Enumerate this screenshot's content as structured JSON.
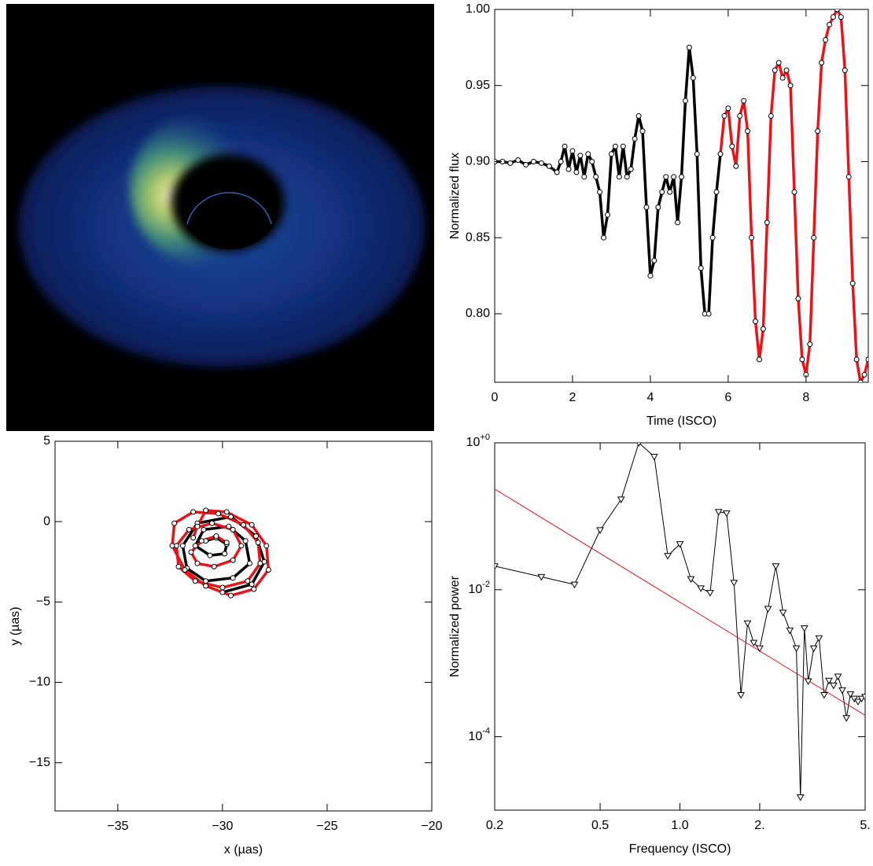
{
  "chart_data": [
    {
      "type": "image"
    },
    {
      "type": "line",
      "xlabel": "Time (ISCO)",
      "ylabel": "Normalized flux",
      "xlim": [
        0,
        9.6
      ],
      "ylim": [
        0.755,
        1.0
      ],
      "xticks": [
        0,
        2,
        4,
        6,
        8
      ],
      "yticks": [
        {
          "value": 0.8,
          "label": "0.80"
        },
        0.85,
        {
          "value": 0.9,
          "label": "0.90"
        },
        0.95,
        {
          "value": 1,
          "label": "1.00"
        }
      ],
      "series": [
        {
          "color": "#000000",
          "marker": "circle",
          "x": [
            0,
            0.2,
            0.4,
            0.6,
            0.8,
            1.0,
            1.2,
            1.4,
            1.6,
            1.7,
            1.8,
            1.9,
            2.0,
            2.1,
            2.2,
            2.3,
            2.4,
            2.5,
            2.6,
            2.7,
            2.8,
            2.9,
            3.0,
            3.1,
            3.2,
            3.3,
            3.4,
            3.5,
            3.6,
            3.7,
            3.8,
            3.9,
            4.0,
            4.1,
            4.2,
            4.3,
            4.4,
            4.5,
            4.6,
            4.7,
            4.8,
            4.9,
            5.0,
            5.1,
            5.2,
            5.3,
            5.4,
            5.5,
            5.6,
            5.7,
            5.8
          ],
          "values": [
            0.9,
            0.9,
            0.899,
            0.901,
            0.898,
            0.9,
            0.899,
            0.897,
            0.893,
            0.9,
            0.91,
            0.895,
            0.907,
            0.893,
            0.904,
            0.89,
            0.905,
            0.9,
            0.89,
            0.88,
            0.85,
            0.865,
            0.905,
            0.91,
            0.89,
            0.91,
            0.89,
            0.895,
            0.915,
            0.93,
            0.92,
            0.87,
            0.825,
            0.835,
            0.87,
            0.88,
            0.89,
            0.88,
            0.89,
            0.86,
            0.89,
            0.94,
            0.975,
            0.955,
            0.905,
            0.83,
            0.8,
            0.8,
            0.85,
            0.88,
            0.905
          ]
        },
        {
          "color": "#e8141a",
          "marker": "circle",
          "x": [
            5.8,
            5.9,
            6.0,
            6.1,
            6.2,
            6.3,
            6.4,
            6.5,
            6.6,
            6.7,
            6.8,
            6.9,
            7.0,
            7.1,
            7.2,
            7.3,
            7.4,
            7.5,
            7.6,
            7.7,
            7.8,
            7.9,
            8.0,
            8.1,
            8.2,
            8.3,
            8.4,
            8.5,
            8.6,
            8.7,
            8.8,
            8.9,
            9.0,
            9.1,
            9.2,
            9.3,
            9.4,
            9.5,
            9.6
          ],
          "values": [
            0.905,
            0.93,
            0.935,
            0.91,
            0.897,
            0.93,
            0.94,
            0.92,
            0.85,
            0.795,
            0.77,
            0.79,
            0.86,
            0.93,
            0.96,
            0.965,
            0.955,
            0.96,
            0.95,
            0.88,
            0.81,
            0.77,
            0.76,
            0.78,
            0.85,
            0.92,
            0.965,
            0.98,
            0.99,
            0.995,
            1.0,
            0.995,
            0.96,
            0.89,
            0.82,
            0.77,
            0.755,
            0.76,
            0.77
          ]
        }
      ]
    },
    {
      "type": "line",
      "xlabel": "x (µas)",
      "ylabel": "y (µas)",
      "xlim": [
        -38,
        -20
      ],
      "ylim": [
        -18,
        5
      ],
      "xticks": [
        {
          "value": -35,
          "label": "−35"
        },
        {
          "value": -30,
          "label": "−30"
        },
        {
          "value": -25,
          "label": "−25"
        },
        {
          "value": -20,
          "label": "−20"
        }
      ],
      "yticks": [
        5,
        0,
        {
          "value": -5,
          "label": "−5"
        },
        {
          "value": -10,
          "label": "−10"
        },
        {
          "value": -15,
          "label": "−15"
        }
      ],
      "series": [
        {
          "color": "#000000",
          "marker": "circle",
          "x": [
            -30.8,
            -30.3,
            -29.8,
            -29.9,
            -30.6,
            -31.3,
            -30.9,
            -29.7,
            -28.9,
            -28.7,
            -29.5,
            -30.8,
            -31.7,
            -31.9,
            -31.2,
            -29.6,
            -28.4,
            -28.0,
            -28.6,
            -30.0
          ],
          "values": [
            -1.2,
            -1.0,
            -1.4,
            -2.0,
            -2.1,
            -1.5,
            -0.5,
            -0.3,
            -1.2,
            -2.6,
            -3.5,
            -3.7,
            -2.9,
            -1.5,
            -0.1,
            0.3,
            -0.9,
            -2.5,
            -3.9,
            -4.4
          ]
        },
        {
          "color": "#e8141a",
          "marker": "circle",
          "x": [
            -29.8,
            -30.3,
            -31.0,
            -31.5,
            -31.2,
            -30.4,
            -29.5,
            -29.1,
            -29.5,
            -30.5,
            -31.6,
            -32.2,
            -32.1,
            -31.3,
            -30.0,
            -28.8,
            -28.2,
            -28.3,
            -29.0,
            -30.2,
            -31.4,
            -32.3,
            -32.4,
            -31.8,
            -30.8,
            -29.6,
            -28.5,
            -27.8,
            -27.9,
            -28.6,
            -29.8,
            -30.8,
            -31.2,
            -31.4
          ],
          "values": [
            -1.3,
            -0.9,
            -1.2,
            -1.9,
            -2.6,
            -2.8,
            -2.4,
            -1.5,
            -0.5,
            -0.1,
            -0.5,
            -1.5,
            -2.8,
            -3.7,
            -4.1,
            -3.7,
            -2.6,
            -1.3,
            -0.2,
            0.5,
            0.6,
            -0.1,
            -1.5,
            -3.0,
            -4.0,
            -4.6,
            -4.2,
            -3.0,
            -1.5,
            -0.2,
            0.6,
            0.7,
            -0.3,
            -1.0
          ]
        }
      ]
    },
    {
      "type": "line",
      "xlabel": "Frequency (ISCO)",
      "ylabel": "Normalized power",
      "log_x": true,
      "log_y": true,
      "xlim": [
        0.2,
        5
      ],
      "ylim": [
        1e-05,
        1
      ],
      "xticks": [
        0.2,
        0.5,
        {
          "value": 1,
          "label": "1.0"
        },
        {
          "value": 2,
          "label": "2."
        },
        {
          "value": 5,
          "label": "5."
        }
      ],
      "yticks": [
        {
          "value": 1,
          "label": "10",
          "sup": "+0"
        },
        {
          "value": 0.01,
          "label": "10",
          "sup": "-2"
        },
        {
          "value": 0.0001,
          "label": "10",
          "sup": "-4"
        }
      ],
      "series": [
        {
          "color": "#000000",
          "marker": "triangle",
          "x": [
            0.2,
            0.3,
            0.4,
            0.5,
            0.6,
            0.7,
            0.8,
            0.9,
            1.0,
            1.1,
            1.2,
            1.3,
            1.4,
            1.5,
            1.6,
            1.7,
            1.8,
            1.9,
            2.0,
            2.15,
            2.3,
            2.45,
            2.6,
            2.75,
            2.85,
            2.95,
            3.05,
            3.2,
            3.35,
            3.5,
            3.65,
            3.8,
            3.95,
            4.1,
            4.25,
            4.4,
            4.55,
            4.7,
            4.85,
            5.0
          ],
          "values": [
            0.021,
            0.015,
            0.0118,
            0.065,
            0.17,
            1.0,
            0.65,
            0.029,
            0.042,
            0.014,
            0.0105,
            0.0091,
            0.115,
            0.11,
            0.0125,
            0.00037,
            0.0035,
            0.0019,
            0.0016,
            0.0055,
            0.021,
            0.0049,
            0.0028,
            0.0016,
            1.5e-05,
            0.003,
            0.00057,
            0.0016,
            0.0022,
            0.00037,
            0.00058,
            0.0005,
            0.00066,
            0.00043,
            0.00018,
            0.00038,
            0.00033,
            0.0003,
            0.00033,
            0.00035
          ]
        },
        {
          "color": "#e8141a",
          "x": [
            0.2,
            5
          ],
          "values": [
            0.235,
            0.000195
          ]
        }
      ]
    }
  ]
}
